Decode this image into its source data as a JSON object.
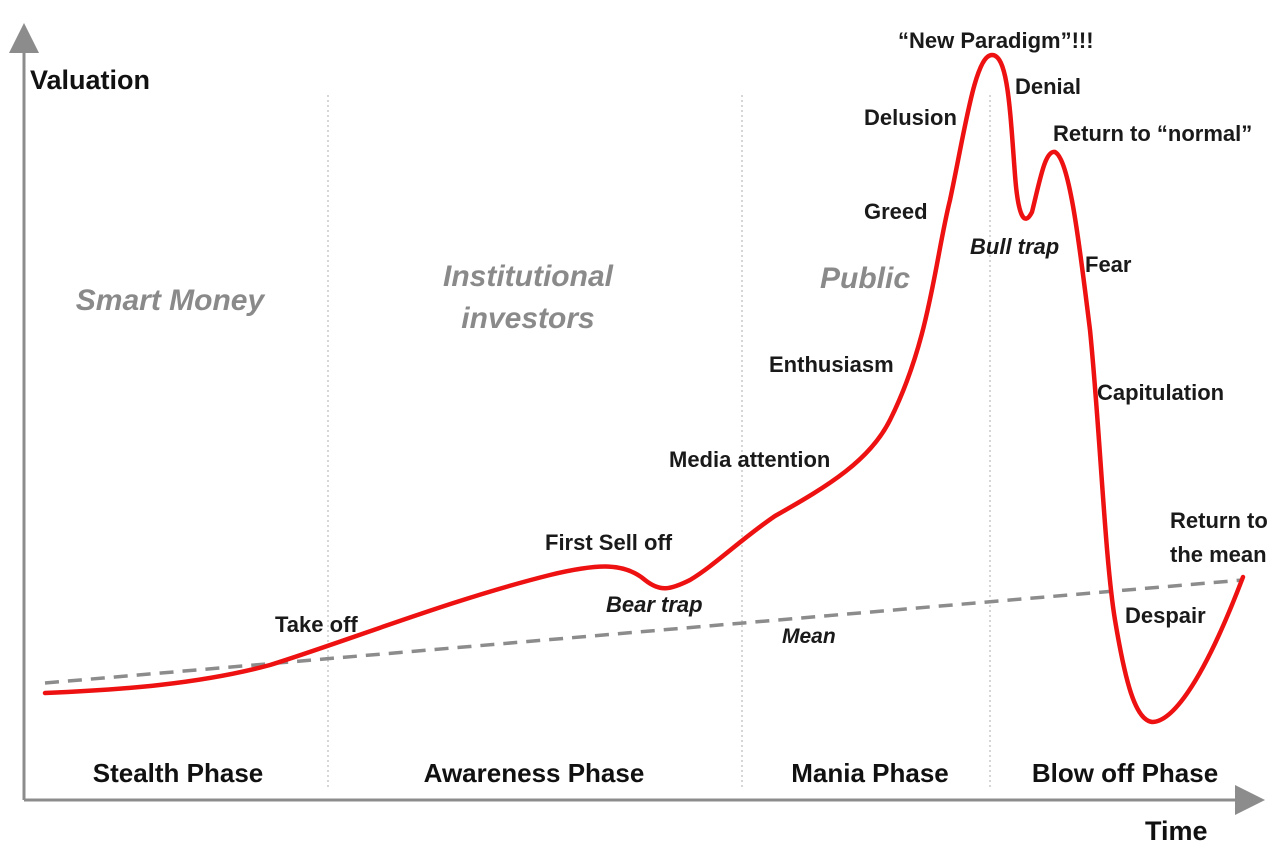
{
  "axes": {
    "y_title": "Valuation",
    "x_title": "Time"
  },
  "groups": [
    "Smart Money",
    "Institutional",
    "investors",
    "Public"
  ],
  "phases": [
    "Stealth Phase",
    "Awareness Phase",
    "Mania Phase",
    "Blow off Phase"
  ],
  "stages": {
    "take_off": "Take off",
    "first_sell_off": "First Sell off",
    "bear_trap": "Bear trap",
    "mean": "Mean",
    "media_attention": "Media attention",
    "enthusiasm": "Enthusiasm",
    "greed": "Greed",
    "delusion": "Delusion",
    "new_paradigm": "“New Paradigm”!!!",
    "denial": "Denial",
    "bull_trap": "Bull trap",
    "return_to_normal": "Return to “normal”",
    "fear": "Fear",
    "capitulation": "Capitulation",
    "despair": "Despair",
    "return_to_the_mean_line1": "Return to",
    "return_to_the_mean_line2": "the mean"
  },
  "colors": {
    "curve": "#ee1111",
    "mean_line": "#8c8c8c",
    "axis": "#8c8c8c",
    "group_text": "#8a8a8a",
    "divider": "#c8c8c8"
  }
}
